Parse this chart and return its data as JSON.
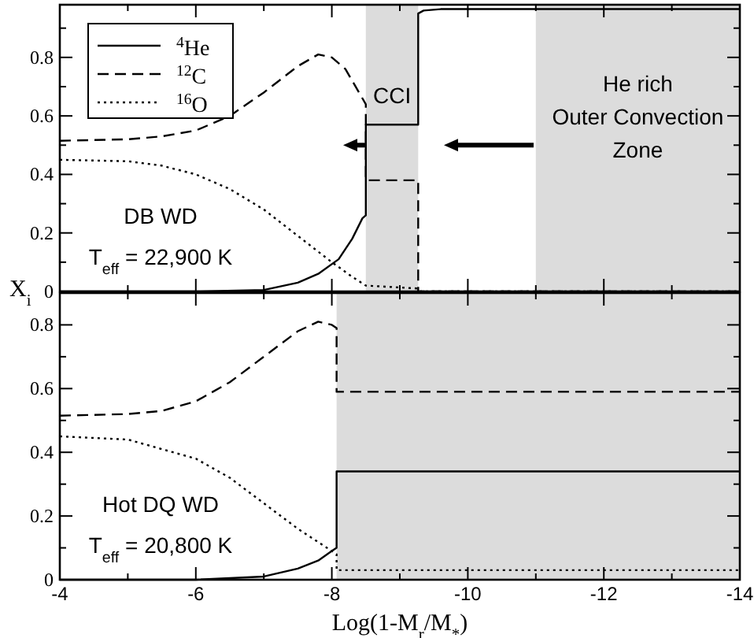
{
  "chart_data": [
    {
      "type": "line",
      "ylabel": "X$_{i}$",
      "xlim": [
        -4,
        -14
      ],
      "ylim": [
        0,
        0.98
      ],
      "xticks": [
        -4,
        {
          "value": -5,
          "label": null
        },
        -6,
        {
          "value": -7,
          "label": null
        },
        -8,
        {
          "value": -9,
          "label": null
        },
        -10,
        {
          "value": -11,
          "label": null
        },
        -12,
        {
          "value": -13,
          "label": null
        },
        -14
      ],
      "yticks": [
        0,
        {
          "value": 0.1,
          "label": null
        },
        0.2,
        {
          "value": 0.3,
          "label": null
        },
        0.4,
        {
          "value": 0.5,
          "label": null
        },
        0.6,
        {
          "value": 0.7,
          "label": null
        },
        0.8,
        {
          "value": 0.9,
          "label": null
        }
      ],
      "tick_labels": "y",
      "legend": "top left",
      "grid": false,
      "bands": [
        {
          "axis": "x",
          "from": -8.5,
          "to": -9.27,
          "label": "CCI",
          "color": "#dcdcdc"
        },
        {
          "axis": "x",
          "from": -11,
          "to": -14,
          "label": "He rich\nOuter Convection\nZone",
          "color": "#dcdcdc"
        }
      ],
      "annotations": [
        "DB WD",
        "T$_{eff}$ = 22,900 K"
      ],
      "series": [
        {
          "name": "$^{4}$He",
          "color": "#000000",
          "line_style": "solid",
          "x": [
            -4,
            -6,
            -7,
            -7.5,
            -7.8,
            -8.1,
            -8.3,
            -8.45,
            -8.5,
            -8.5,
            -9.27,
            -9.27,
            -9.35,
            -9.6,
            -14
          ],
          "values": [
            0,
            0,
            0.005,
            0.03,
            0.06,
            0.11,
            0.18,
            0.25,
            0.26,
            0.57,
            0.57,
            0.95,
            0.96,
            0.965,
            0.965
          ]
        },
        {
          "name": "$^{12}$C",
          "color": "#000000",
          "line_style": "dashed",
          "x": [
            -4,
            -5,
            -5.5,
            -6,
            -6.5,
            -7,
            -7.5,
            -7.8,
            -8,
            -8.2,
            -8.4,
            -8.5,
            -8.5,
            -9.27,
            -9.27,
            -14
          ],
          "values": [
            0.515,
            0.52,
            0.53,
            0.55,
            0.6,
            0.68,
            0.77,
            0.81,
            0.8,
            0.76,
            0.68,
            0.64,
            0.38,
            0.38,
            0,
            0
          ]
        },
        {
          "name": "$^{16}$O",
          "color": "#000000",
          "line_style": "dotted",
          "x": [
            -4,
            -5,
            -5.5,
            -6,
            -6.5,
            -7,
            -7.5,
            -8,
            -8.3,
            -8.5,
            -9.27,
            -9.3,
            -14
          ],
          "values": [
            0.45,
            0.445,
            0.43,
            0.4,
            0.35,
            0.28,
            0.19,
            0.1,
            0.05,
            0.02,
            0.01,
            0,
            0
          ]
        }
      ]
    },
    {
      "type": "line",
      "xlabel": "Log(1-M$_{r}$/M$_{*}$)",
      "xlim": [
        -4,
        -14
      ],
      "ylim": [
        0,
        0.9
      ],
      "xticks": [
        -4,
        {
          "value": -5,
          "label": null
        },
        -6,
        {
          "value": -7,
          "label": null
        },
        -8,
        {
          "value": -9,
          "label": null
        },
        -10,
        {
          "value": -11,
          "label": null
        },
        -12,
        {
          "value": -13,
          "label": null
        },
        -14
      ],
      "yticks": [
        0,
        {
          "value": 0.1,
          "label": null
        },
        0.2,
        {
          "value": 0.3,
          "label": null
        },
        0.4,
        {
          "value": 0.5,
          "label": null
        },
        0.6,
        {
          "value": 0.7,
          "label": null
        },
        0.8
      ],
      "grid": false,
      "bands": [
        {
          "axis": "x",
          "from": -8.07,
          "to": -14,
          "color": "#dcdcdc"
        }
      ],
      "annotations": [
        "Hot DQ WD",
        "T$_{eff}$ = 20,800 K"
      ],
      "series": [
        {
          "color": "#000000",
          "line_style": "solid",
          "x": [
            -4,
            -6,
            -7,
            -7.5,
            -7.8,
            -8,
            -8.07,
            -8.07,
            -14
          ],
          "values": [
            0,
            0,
            0.01,
            0.035,
            0.06,
            0.09,
            0.1,
            0.34,
            0.34
          ]
        },
        {
          "color": "#000000",
          "line_style": "dashed",
          "x": [
            -4,
            -5,
            -5.5,
            -6,
            -6.5,
            -7,
            -7.5,
            -7.8,
            -8,
            -8.07,
            -8.07,
            -14
          ],
          "values": [
            0.515,
            0.52,
            0.53,
            0.56,
            0.62,
            0.7,
            0.78,
            0.81,
            0.8,
            0.79,
            0.59,
            0.59
          ]
        },
        {
          "color": "#000000",
          "line_style": "dotted",
          "x": [
            -4,
            -5,
            -6,
            -6.5,
            -7,
            -7.5,
            -8,
            -8.07,
            -8.07,
            -14
          ],
          "values": [
            0.45,
            0.44,
            0.38,
            0.32,
            0.24,
            0.16,
            0.09,
            0.08,
            0.03,
            0.03
          ]
        }
      ]
    }
  ]
}
